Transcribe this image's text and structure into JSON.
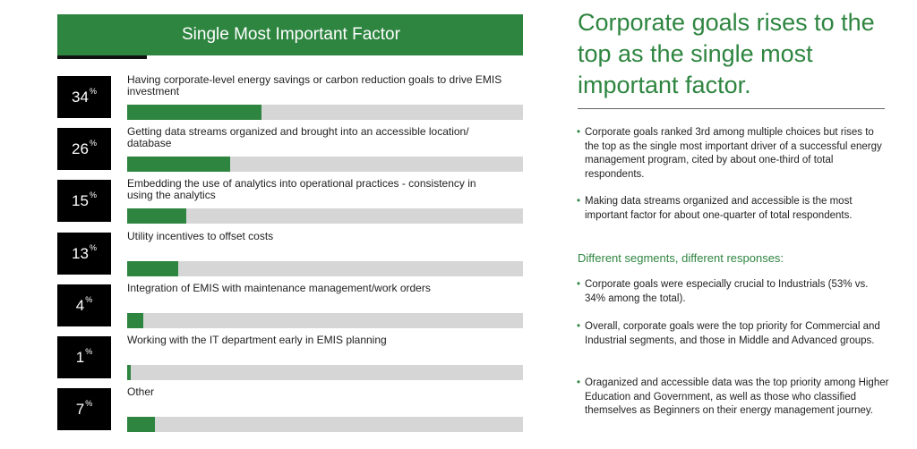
{
  "chart_data": {
    "type": "bar",
    "title": "Single Most Important Factor",
    "unit": "%",
    "categories": [
      "Having corporate-level energy savings or carbon reduction goals to drive EMIS investment",
      "Getting data streams organized and brought into an accessible location/ database",
      "Embedding the use of analytics into operational practices - consistency in using the analytics",
      "Utility incentives to offset costs",
      "Integration of EMIS with maintenance management/work orders",
      "Working with the IT department early in EMIS planning",
      "Other"
    ],
    "values": [
      34,
      26,
      15,
      13,
      4,
      1,
      7
    ],
    "xlim": [
      0,
      100
    ],
    "colors": {
      "bar": "#2e8540",
      "track": "#d6d6d6",
      "box": "#000000"
    }
  },
  "chart_labels": {
    "title": "Single Most Important Factor",
    "unit": "%",
    "rows": [
      {
        "value": "34",
        "label": "Having corporate-level energy savings or carbon reduction goals to drive EMIS investment"
      },
      {
        "value": "26",
        "label": "Getting data streams organized and brought into an accessible location/ database"
      },
      {
        "value": "15",
        "label": "Embedding the use of analytics into operational practices - consistency in using the analytics"
      },
      {
        "value": "13",
        "label": "Utility incentives to offset costs"
      },
      {
        "value": "4",
        "label": "Integration of EMIS with maintenance management/work orders"
      },
      {
        "value": "1",
        "label": "Working with the IT department early in EMIS planning"
      },
      {
        "value": "7",
        "label": "Other"
      }
    ]
  },
  "panel": {
    "headline": "Corporate goals rises to the top as the single most important factor.",
    "bullets_top": [
      "Corporate goals ranked 3rd among multiple choices but rises to the top as the single most important driver of a successful energy management program, cited by about one-third of total respondents.",
      "Making data streams organized and accessible is the most important factor for about one-quarter of total respondents."
    ],
    "subhead": "Different segments, different responses:",
    "bullets_bottom": [
      "Corporate goals were especially crucial to Industrials (53% vs. 34% among the total).",
      "Overall, corporate goals were the top priority for Commercial and Industrial segments, and those in Middle and Advanced groups.",
      "Oraganized and accessible data was the top priority among Higher Education and Government, as well as those who classified themselves as Beginners on their energy management journey."
    ],
    "accent_color": "#2e8540"
  }
}
